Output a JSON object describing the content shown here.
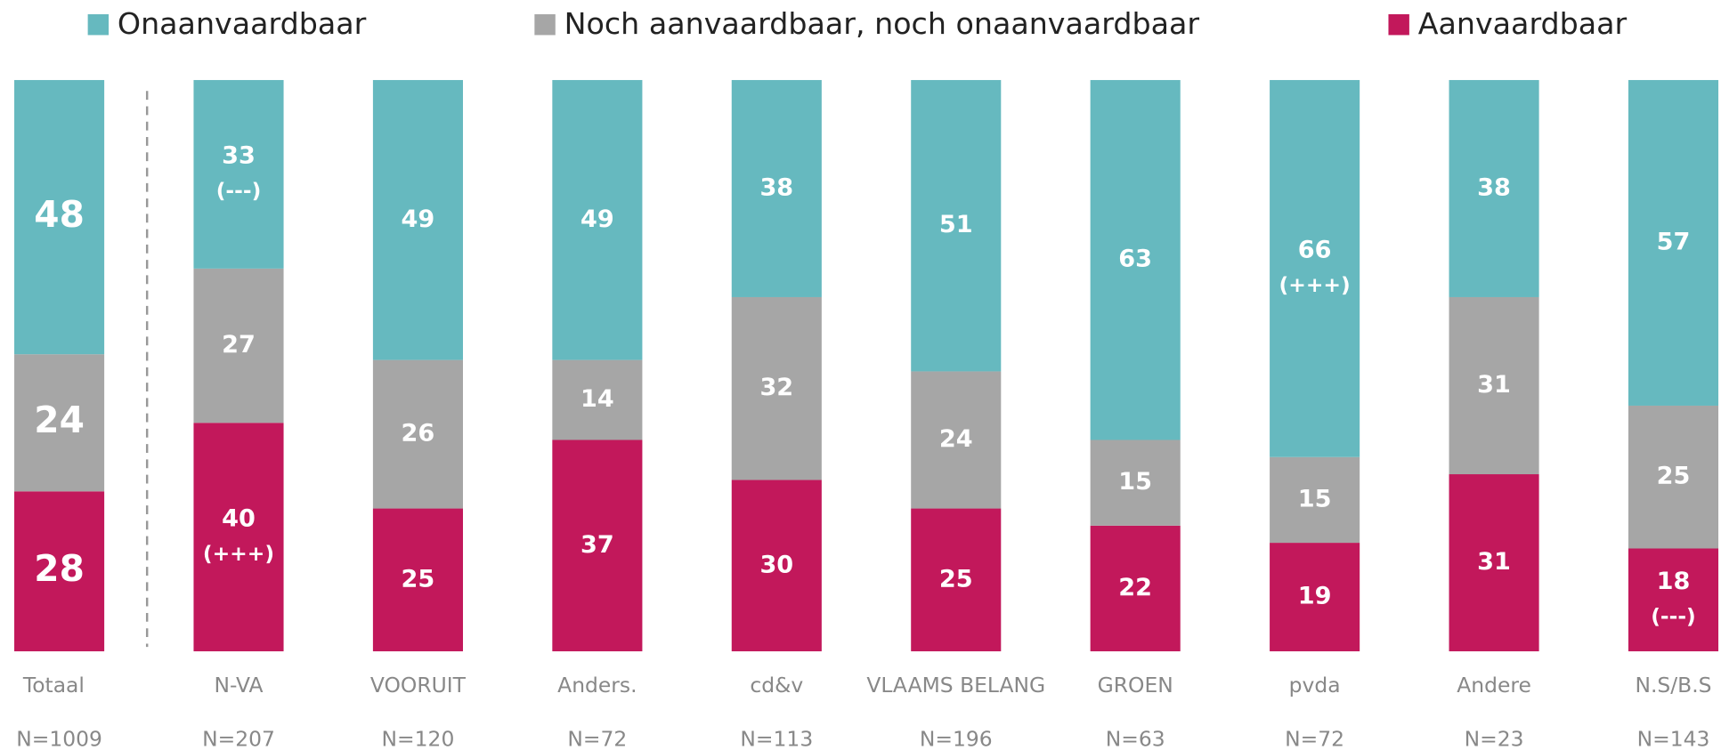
{
  "chart_data": {
    "type": "stacked_bar",
    "categories": [
      "Totaal",
      "N-VA",
      "VOORUIT",
      "Anders.",
      "cd&v",
      "VLAAMS BELANG",
      "GROEN",
      "pvda",
      "Andere",
      "N.S/B.S"
    ],
    "sample_sizes": [
      "N=1009",
      "N=207",
      "N=120",
      "N=72",
      "N=113",
      "N=196",
      "N=63",
      "N=72",
      "N=23",
      "N=143"
    ],
    "ylim": [
      0,
      100
    ],
    "series": [
      {
        "name": "Onaanvaardbaar",
        "color": "#66b9bf",
        "values": [
          48,
          33,
          49,
          49,
          38,
          51,
          63,
          66,
          38,
          57
        ],
        "notes": [
          null,
          "(---)",
          null,
          null,
          null,
          null,
          null,
          "(+++)",
          null,
          null
        ]
      },
      {
        "name": "Noch aanvaardbaar, noch onaanvaardbaar",
        "color": "#a6a6a6",
        "values": [
          24,
          27,
          26,
          14,
          32,
          24,
          15,
          15,
          31,
          25
        ],
        "notes": [
          null,
          null,
          null,
          null,
          null,
          null,
          null,
          null,
          null,
          null
        ]
      },
      {
        "name": "Aanvaardbaar",
        "color": "#c2185b",
        "values": [
          28,
          40,
          25,
          37,
          30,
          25,
          22,
          19,
          31,
          18
        ],
        "notes": [
          null,
          "(+++)",
          null,
          null,
          null,
          null,
          null,
          null,
          null,
          "(---)"
        ]
      }
    ]
  }
}
